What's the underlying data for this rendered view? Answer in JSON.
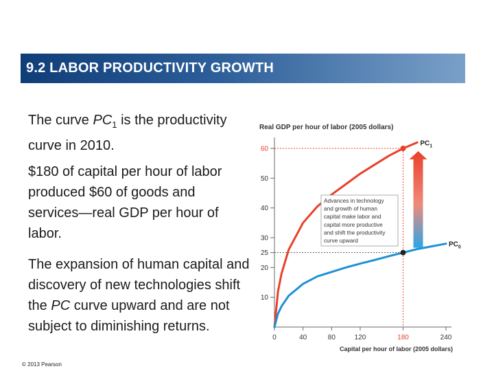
{
  "header": {
    "title": "9.2 LABOR PRODUCTIVITY GROWTH"
  },
  "text": {
    "p1_a": "The curve ",
    "p1_pc": "PC",
    "p1_sub": "1",
    "p1_b": " is the productivity curve in 2010.",
    "p2": "$180 of capital per hour of labor produced $60 of goods and services—real GDP per hour of labor.",
    "p3_a": "The expansion of human capital and discovery of new technologies shift the ",
    "p3_pc": "PC",
    "p3_b": " curve upward and are not subject to diminishing returns."
  },
  "footer": {
    "copyright": "© 2013 Pearson"
  },
  "colors": {
    "pc1": "#e8402a",
    "pc0": "#1e90d6",
    "arrow_top": "#e8402a",
    "arrow_bottom": "#2ba6e8",
    "title_bg": "#1f4e8c"
  },
  "chart_data": {
    "type": "line",
    "ylabel": "Real GDP per hour of labor (2005 dollars)",
    "xlabel": "Capital per hour of labor (2005 dollars)",
    "xlim": [
      0,
      240
    ],
    "ylim": [
      0,
      60
    ],
    "x_ticks": [
      0,
      40,
      80,
      120,
      180,
      240
    ],
    "y_ticks": [
      10,
      20,
      25,
      30,
      40,
      50,
      60
    ],
    "series": [
      {
        "name": "PC",
        "sub": "1",
        "x": [
          0,
          5,
          10,
          20,
          40,
          60,
          80,
          100,
          120,
          140,
          160,
          180,
          200
        ],
        "y": [
          0,
          12,
          18,
          26,
          35,
          40.5,
          44.5,
          48,
          51.5,
          54.5,
          57.5,
          60,
          62
        ]
      },
      {
        "name": "PC",
        "sub": "0",
        "x": [
          0,
          5,
          10,
          20,
          40,
          60,
          80,
          100,
          120,
          140,
          160,
          180,
          200,
          240
        ],
        "y": [
          0,
          4.5,
          7,
          10.5,
          14.5,
          17,
          18.5,
          20,
          21.3,
          22.5,
          23.8,
          25,
          26.2,
          28
        ]
      }
    ],
    "points": [
      {
        "x": 180,
        "y": 60
      },
      {
        "x": 180,
        "y": 25
      }
    ],
    "annotation": "Advances in technology and growth of human capital make labor and capital more productive and shift the productivity curve upward"
  }
}
